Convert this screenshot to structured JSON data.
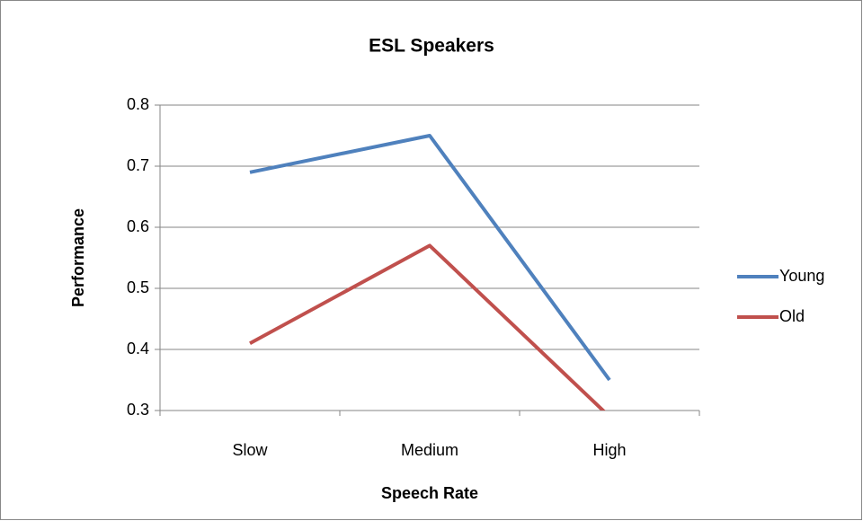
{
  "chart_data": {
    "type": "line",
    "title": "ESL Speakers",
    "x_label": "Speech Rate",
    "y_label": "Performance",
    "categories": [
      "Slow",
      "Medium",
      "High"
    ],
    "series": [
      {
        "name": "Young",
        "color": "#4f81bd",
        "values": [
          0.69,
          0.75,
          0.35
        ]
      },
      {
        "name": "Old",
        "color": "#c0504d",
        "values": [
          0.41,
          0.57,
          0.29
        ]
      }
    ],
    "ylim": [
      0.3,
      0.8
    ],
    "yticks": [
      0.3,
      0.4,
      0.5,
      0.6,
      0.7,
      0.8
    ],
    "grid": true,
    "legend": "right"
  }
}
